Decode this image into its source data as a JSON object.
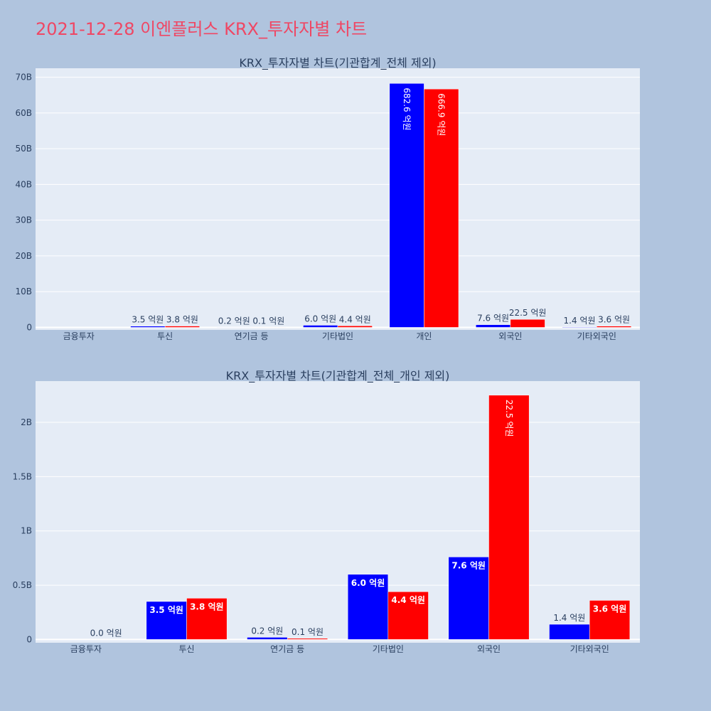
{
  "page_title": "2021-12-28 이엔플러스 KRX_투자자별 차트",
  "colors": {
    "buy": "#0000ff",
    "sell": "#ff0000",
    "plot_bg": "#e5ecf6",
    "page_bg": "#b0c4de",
    "text": "#2a3f5f"
  },
  "chart_data": [
    {
      "type": "bar",
      "title": "KRX_투자자별 차트(기관합계_전체 제외)",
      "categories": [
        "금융투자",
        "투신",
        "연기금 등",
        "기타법인",
        "개인",
        "외국인",
        "기타외국인"
      ],
      "series": [
        {
          "values": [
            0,
            350000000,
            20000000,
            600000000,
            68260000000,
            760000000,
            140000000
          ],
          "labels": [
            "",
            "3.5 억원",
            "0.2 억원",
            "6.0 억원",
            "682.6 억원",
            "7.6 억원",
            "1.4 억원"
          ]
        },
        {
          "values": [
            0,
            380000000,
            10000000,
            440000000,
            66690000000,
            2250000000,
            360000000
          ],
          "labels": [
            "",
            "3.8 억원",
            "0.1 억원",
            "4.4 억원",
            "666.9 억원",
            "22.5 억원",
            "3.6 억원"
          ]
        }
      ],
      "ylim": [
        -700000000,
        72500000000
      ],
      "yticks": [
        0,
        10000000000,
        20000000000,
        30000000000,
        40000000000,
        50000000000,
        60000000000,
        70000000000
      ],
      "ytick_labels": [
        "0",
        "10B",
        "20B",
        "30B",
        "40B",
        "50B",
        "60B",
        "70B"
      ],
      "grid": true,
      "legend": "none"
    },
    {
      "type": "bar",
      "title": "KRX_투자자별 차트(기관합계_전체_개인 제외)",
      "categories": [
        "금융투자",
        "투신",
        "연기금 등",
        "기타법인",
        "외국인",
        "기타외국인"
      ],
      "series": [
        {
          "values": [
            0,
            350000000,
            20000000,
            600000000,
            760000000,
            140000000
          ],
          "labels": [
            "",
            "3.5 억원",
            "0.2 억원",
            "6.0 억원",
            "7.6 억원",
            "1.4 억원"
          ]
        },
        {
          "values": [
            0,
            380000000,
            10000000,
            440000000,
            2250000000,
            360000000
          ],
          "labels": [
            "0.0 억원",
            "3.8 억원",
            "0.1 억원",
            "4.4 억원",
            "22.5 억원",
            "3.6 억원"
          ]
        }
      ],
      "ylim": [
        -30000000,
        2380000000
      ],
      "yticks": [
        0,
        500000000,
        1000000000,
        1500000000,
        2000000000
      ],
      "ytick_labels": [
        "0",
        "0.5B",
        "1B",
        "1.5B",
        "2B"
      ],
      "grid": true,
      "legend": "none"
    }
  ]
}
